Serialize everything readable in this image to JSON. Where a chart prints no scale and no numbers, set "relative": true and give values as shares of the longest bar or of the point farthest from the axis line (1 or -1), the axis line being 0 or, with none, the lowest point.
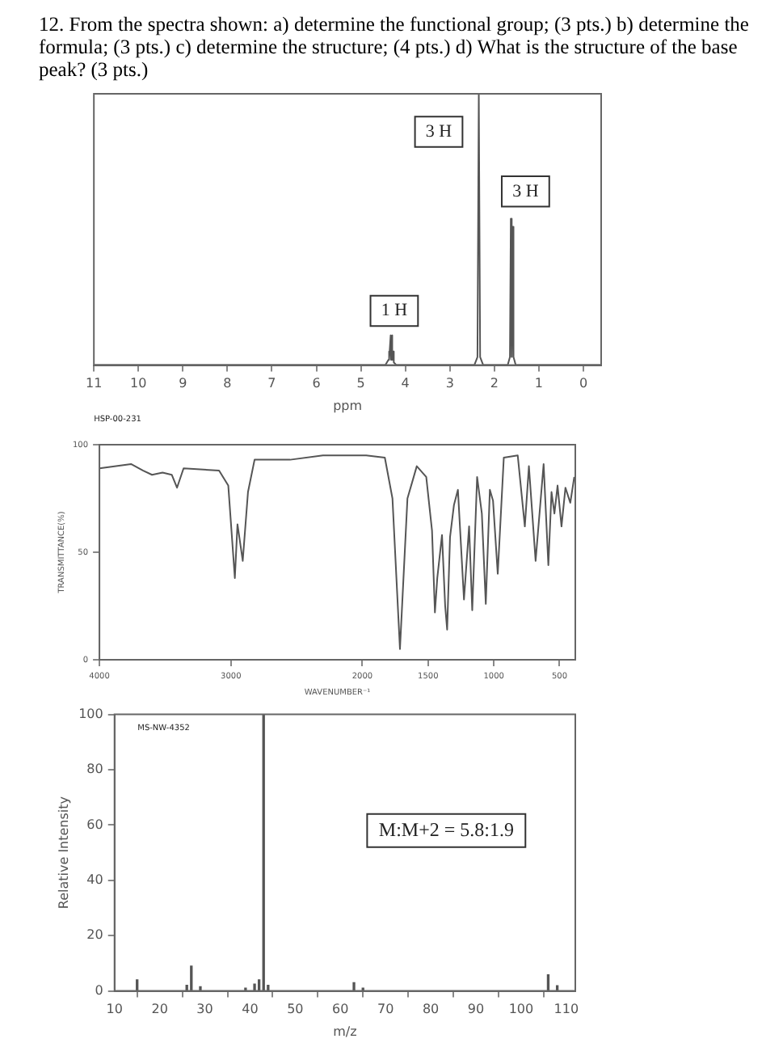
{
  "chart_data": [
    {
      "type": "line",
      "title": "12. From the spectra shown: a) determine the functional group; (3 pts.) b) determine the formula; (3 pts.) c) determine the structure; (4 pts.) d) What is the structure of the base peak? (3 pts.)",
      "xlabel": "ppm",
      "relative": true,
      "xlim": [
        11,
        -0.4
      ],
      "xticks": [
        11,
        10,
        9,
        8,
        7,
        6,
        5,
        4,
        3,
        2,
        1,
        0
      ],
      "series": [
        {
          "color": "#555555",
          "x": [
            11,
            4.45,
            4.38,
            4.37,
            4.36,
            4.33,
            4.32,
            4.3,
            4.29,
            4.27,
            4.26,
            4.2,
            2.45,
            2.38,
            2.35,
            2.32,
            2.25,
            1.7,
            1.65,
            1.63,
            1.61,
            1.59,
            1.57,
            1.52,
            -0.4
          ],
          "values": [
            0,
            0,
            0.02,
            0.05,
            0.02,
            0.11,
            0.02,
            0.11,
            0.02,
            0.05,
            0.01,
            0,
            0,
            0.03,
            1,
            0.03,
            0,
            0,
            0.03,
            0.54,
            0.03,
            0.51,
            0.03,
            0,
            0
          ]
        }
      ],
      "annotations": [
        "HSP-00-231",
        {
          "text": "3 H",
          "x": 3.25,
          "y": 0.86
        },
        {
          "text": "3 H",
          "x": 1.3,
          "y": 0.64
        },
        {
          "text": "1 H",
          "x": 4.25,
          "y": 0.2
        }
      ]
    },
    {
      "type": "line",
      "xlabel": "WAVENUMBER⁻¹",
      "ylabel": "TRANSMITTANCE(%)",
      "xlim": [
        4000,
        380
      ],
      "xticks": [
        4000,
        3000,
        2000,
        1500,
        1000,
        500
      ],
      "ylim": [
        0,
        100
      ],
      "yticks": [
        0,
        50,
        100
      ],
      "series": [
        {
          "color": "#555555",
          "x": [
            4000,
            3760,
            3670,
            3600,
            3520,
            3450,
            3410,
            3360,
            3090,
            3020,
            2970,
            2950,
            2910,
            2870,
            2820,
            2550,
            2300,
            1971,
            1829,
            1771,
            1714,
            1657,
            1586,
            1514,
            1470,
            1448,
            1430,
            1394,
            1370,
            1355,
            1333,
            1303,
            1273,
            1227,
            1188,
            1164,
            1127,
            1091,
            1061,
            1030,
            1006,
            970,
            924,
            818,
            764,
            733,
            682,
            621,
            585,
            561,
            539,
            515,
            485,
            455,
            418,
            388
          ],
          "values": [
            89,
            91,
            88,
            86,
            87,
            86,
            80,
            89,
            88,
            81,
            38,
            63,
            46,
            78,
            93,
            93,
            95,
            95,
            94,
            75,
            5,
            75,
            90,
            85,
            60,
            22,
            38,
            58,
            25,
            14,
            57,
            72,
            79,
            28,
            62,
            23,
            85,
            68,
            26,
            79,
            74,
            40,
            94,
            95,
            62,
            90,
            46,
            91,
            44,
            78,
            68,
            81,
            62,
            80,
            73,
            85
          ]
        }
      ]
    },
    {
      "type": "bar",
      "xlabel": "m/z",
      "ylabel": "Relative Intensity",
      "xlim": [
        10,
        112
      ],
      "xticks": [
        10,
        20,
        30,
        40,
        50,
        60,
        70,
        80,
        90,
        100,
        110
      ],
      "ylim": [
        0,
        100
      ],
      "yticks": [
        0,
        20,
        40,
        60,
        80,
        100
      ],
      "series": [
        {
          "color": "#555555",
          "x": [
            15,
            26,
            27,
            29,
            39,
            41,
            42,
            43,
            44,
            63,
            65,
            106,
            108
          ],
          "values": [
            4,
            2,
            9,
            1.5,
            1,
            2.5,
            4,
            100,
            2,
            3,
            1,
            5.8,
            1.9
          ]
        }
      ],
      "annotations": [
        "MS-NW-4352",
        "M:M+2 = 5.8:1.9"
      ]
    }
  ]
}
